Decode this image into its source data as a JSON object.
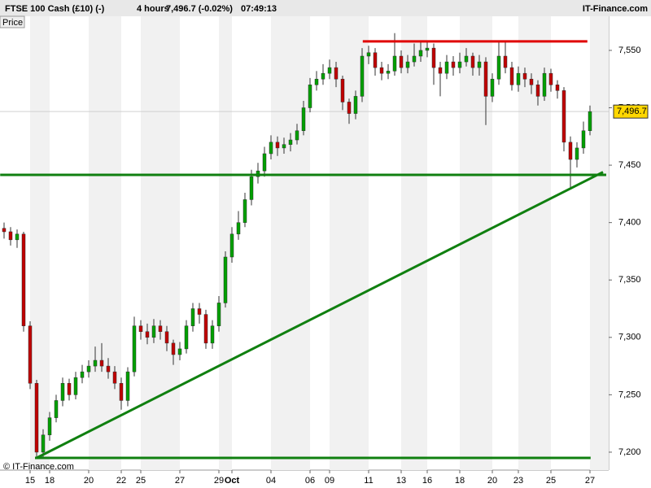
{
  "header": {
    "instrument": "FTSE 100 Cash (£10) (-)",
    "timeframe": "4 hours",
    "quote": "7,496.7 (-0.02%)",
    "time": "07:49:13",
    "brand": "IT-Finance.com"
  },
  "chart_data": {
    "type": "candlestick",
    "panel_label": "Price",
    "watermark": "© IT-Finance.com",
    "categories": [
      null,
      null,
      null,
      null,
      "15",
      null,
      null,
      "18",
      null,
      null,
      null,
      null,
      null,
      "20",
      null,
      null,
      null,
      null,
      "22",
      null,
      null,
      "25",
      null,
      null,
      null,
      null,
      null,
      "27",
      null,
      null,
      null,
      null,
      null,
      "29",
      null,
      "Oct",
      null,
      null,
      null,
      null,
      null,
      "04",
      null,
      null,
      null,
      null,
      null,
      "06",
      null,
      null,
      "09",
      null,
      null,
      null,
      null,
      null,
      "11",
      null,
      null,
      null,
      null,
      "13",
      null,
      null,
      null,
      "16",
      null,
      null,
      null,
      null,
      "18",
      null,
      null,
      null,
      null,
      "20",
      null,
      null,
      null,
      "23",
      null,
      null,
      null,
      null,
      "25",
      null,
      null,
      null,
      null,
      null,
      "27"
    ],
    "ohlc": {
      "open": [
        7395,
        7392,
        7385,
        7390,
        7310,
        7260,
        7200,
        7215,
        7230,
        7245,
        7260,
        7250,
        7265,
        7270,
        7275,
        7280,
        7275,
        7270,
        7260,
        7245,
        7270,
        7310,
        7305,
        7300,
        7310,
        7305,
        7295,
        7285,
        7290,
        7310,
        7325,
        7320,
        7295,
        7310,
        7330,
        7370,
        7390,
        7400,
        7420,
        7440,
        7445,
        7460,
        7470,
        7465,
        7468,
        7472,
        7480,
        7500,
        7520,
        7525,
        7530,
        7535,
        7525,
        7505,
        7495,
        7510,
        7545,
        7548,
        7535,
        7530,
        7532,
        7545,
        7535,
        7540,
        7545,
        7550,
        7552,
        7535,
        7530,
        7540,
        7535,
        7540,
        7545,
        7535,
        7540,
        7510,
        7525,
        7545,
        7535,
        7520,
        7530,
        7525,
        7520,
        7510,
        7530,
        7520,
        7515,
        7470,
        7455,
        7465,
        7480
      ],
      "high": [
        7400,
        7396,
        7394,
        7392,
        7314,
        7263,
        7220,
        7235,
        7250,
        7265,
        7264,
        7270,
        7276,
        7280,
        7292,
        7295,
        7282,
        7275,
        7265,
        7274,
        7318,
        7315,
        7312,
        7316,
        7315,
        7310,
        7298,
        7296,
        7315,
        7330,
        7330,
        7324,
        7315,
        7336,
        7375,
        7396,
        7410,
        7426,
        7446,
        7452,
        7466,
        7476,
        7475,
        7474,
        7478,
        7486,
        7506,
        7526,
        7532,
        7538,
        7542,
        7540,
        7528,
        7508,
        7515,
        7552,
        7554,
        7552,
        7540,
        7538,
        7565,
        7550,
        7546,
        7556,
        7558,
        7558,
        7556,
        7540,
        7546,
        7545,
        7548,
        7552,
        7548,
        7546,
        7544,
        7530,
        7558,
        7558,
        7540,
        7536,
        7535,
        7530,
        7524,
        7535,
        7534,
        7524,
        7518,
        7475,
        7470,
        7488,
        7502
      ],
      "low": [
        7386,
        7380,
        7378,
        7305,
        7255,
        7196,
        7196,
        7210,
        7226,
        7240,
        7245,
        7246,
        7260,
        7265,
        7270,
        7270,
        7264,
        7255,
        7237,
        7240,
        7266,
        7298,
        7294,
        7295,
        7298,
        7288,
        7276,
        7280,
        7286,
        7305,
        7312,
        7290,
        7290,
        7305,
        7326,
        7365,
        7385,
        7396,
        7415,
        7434,
        7440,
        7455,
        7458,
        7460,
        7462,
        7468,
        7476,
        7496,
        7515,
        7520,
        7525,
        7518,
        7498,
        7486,
        7490,
        7505,
        7538,
        7528,
        7524,
        7525,
        7528,
        7530,
        7530,
        7536,
        7540,
        7544,
        7520,
        7510,
        7525,
        7528,
        7530,
        7536,
        7528,
        7528,
        7485,
        7505,
        7520,
        7530,
        7515,
        7514,
        7518,
        7512,
        7502,
        7506,
        7514,
        7508,
        7462,
        7430,
        7448,
        7460,
        7476
      ],
      "close": [
        7392,
        7385,
        7390,
        7310,
        7260,
        7200,
        7215,
        7230,
        7245,
        7260,
        7250,
        7265,
        7270,
        7275,
        7280,
        7275,
        7270,
        7260,
        7245,
        7270,
        7310,
        7305,
        7300,
        7310,
        7305,
        7295,
        7285,
        7290,
        7310,
        7325,
        7320,
        7295,
        7310,
        7330,
        7370,
        7390,
        7400,
        7420,
        7440,
        7445,
        7460,
        7470,
        7465,
        7468,
        7472,
        7480,
        7500,
        7520,
        7525,
        7530,
        7535,
        7525,
        7505,
        7495,
        7510,
        7545,
        7548,
        7535,
        7530,
        7532,
        7545,
        7535,
        7540,
        7545,
        7550,
        7552,
        7535,
        7530,
        7540,
        7535,
        7540,
        7545,
        7535,
        7540,
        7510,
        7525,
        7545,
        7535,
        7520,
        7530,
        7525,
        7520,
        7510,
        7530,
        7520,
        7515,
        7470,
        7455,
        7465,
        7480,
        7496.7
      ]
    },
    "up_color": "#00a000",
    "down_color": "#c00000",
    "current_price": {
      "value": 7496.7,
      "label": "7,496.7"
    },
    "trendlines": [
      {
        "color": "#e00000",
        "x": [
          55.1,
          89.6
        ],
        "y": [
          7557.8,
          7557.8
        ]
      },
      {
        "color": "#108010",
        "x": [
          -0.6,
          92.5
        ],
        "y": [
          7441.6,
          7441.6
        ]
      },
      {
        "color": "#108010",
        "x": [
          5,
          92
        ],
        "y": [
          7195,
          7444
        ]
      },
      {
        "color": "#108010",
        "x": [
          4.75,
          90.1
        ],
        "y": [
          7195,
          7195
        ]
      }
    ],
    "ylim": [
      7186.5,
      7569.8
    ],
    "yticks": [
      {
        "value": 7200,
        "label": "7,200"
      },
      {
        "value": 7250,
        "label": "7,250"
      },
      {
        "value": 7300,
        "label": "7,300"
      },
      {
        "value": 7350,
        "label": "7,350"
      },
      {
        "value": 7400,
        "label": "7,400"
      },
      {
        "value": 7450,
        "label": "7,450"
      },
      {
        "value": 7500,
        "label": "7,500"
      },
      {
        "value": 7550,
        "label": "7,550"
      }
    ]
  }
}
